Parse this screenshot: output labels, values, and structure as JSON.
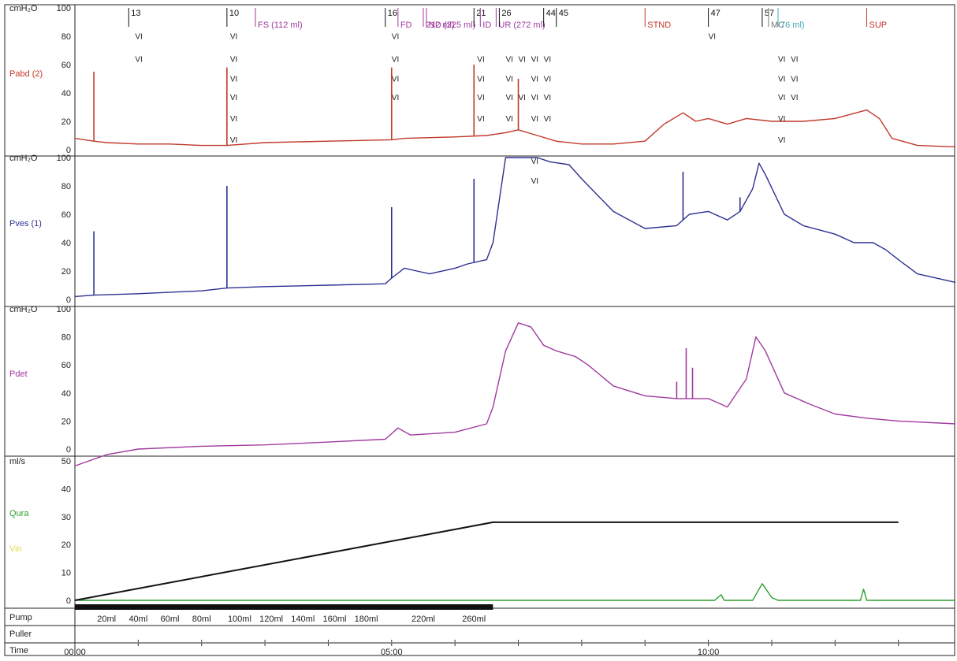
{
  "chart_data": {
    "type": "line",
    "time_axis": {
      "unit": "min",
      "range": [
        0,
        13.9
      ],
      "ticks": [
        {
          "t": 0,
          "label": "00:00"
        },
        {
          "t": 5,
          "label": "05:00"
        },
        {
          "t": 10,
          "label": "10:00"
        }
      ]
    },
    "panels": [
      {
        "id": "pabd",
        "unit": "cmH2O",
        "unit_label": "cmH₂O",
        "ylim": [
          0,
          100
        ],
        "yticks": [
          "0",
          "20",
          "40",
          "60",
          "80",
          "100"
        ],
        "legend": [
          "Pabd (2)"
        ],
        "series": [
          {
            "name": "Pabd (2)",
            "color": "#c0392b",
            "points": [
              [
                0,
                8
              ],
              [
                0.3,
                6
              ],
              [
                0.5,
                5
              ],
              [
                1,
                4
              ],
              [
                1.5,
                4
              ],
              [
                2,
                3
              ],
              [
                2.4,
                3
              ],
              [
                3,
                5
              ],
              [
                4,
                6
              ],
              [
                5,
                7
              ],
              [
                5.2,
                8
              ],
              [
                6,
                9
              ],
              [
                6.5,
                10
              ],
              [
                6.8,
                12
              ],
              [
                7,
                14
              ],
              [
                7.3,
                10
              ],
              [
                7.6,
                6
              ],
              [
                8,
                4
              ],
              [
                8.5,
                4
              ],
              [
                9,
                6
              ],
              [
                9.3,
                18
              ],
              [
                9.6,
                26
              ],
              [
                9.8,
                20
              ],
              [
                10,
                22
              ],
              [
                10.3,
                18
              ],
              [
                10.6,
                22
              ],
              [
                11,
                20
              ],
              [
                11.5,
                20
              ],
              [
                12,
                22
              ],
              [
                12.5,
                28
              ],
              [
                12.7,
                22
              ],
              [
                12.9,
                8
              ],
              [
                13.3,
                3
              ],
              [
                13.9,
                2
              ]
            ],
            "spikes": [
              [
                0.3,
                55
              ],
              [
                2.4,
                58
              ],
              [
                5.0,
                58
              ],
              [
                6.3,
                60
              ],
              [
                7.0,
                50
              ]
            ]
          }
        ]
      },
      {
        "id": "pves",
        "unit": "cmH2O",
        "unit_label": "cmH₂O",
        "ylim": [
          0,
          100
        ],
        "yticks": [
          "0",
          "20",
          "40",
          "60",
          "80",
          "100"
        ],
        "legend": [
          "Pves (1)"
        ],
        "series": [
          {
            "name": "Pves (1)",
            "color": "#2e3192",
            "points": [
              [
                0,
                2
              ],
              [
                0.3,
                3
              ],
              [
                1,
                4
              ],
              [
                2,
                6
              ],
              [
                2.4,
                8
              ],
              [
                3,
                9
              ],
              [
                4,
                10
              ],
              [
                4.9,
                11
              ],
              [
                5.0,
                15
              ],
              [
                5.2,
                22
              ],
              [
                5.4,
                20
              ],
              [
                5.6,
                18
              ],
              [
                6,
                22
              ],
              [
                6.2,
                25
              ],
              [
                6.5,
                28
              ],
              [
                6.6,
                40
              ],
              [
                6.7,
                70
              ],
              [
                6.8,
                100
              ],
              [
                7,
                100
              ],
              [
                7.3,
                100
              ],
              [
                7.5,
                97
              ],
              [
                7.8,
                95
              ],
              [
                8,
                85
              ],
              [
                8.5,
                62
              ],
              [
                9,
                50
              ],
              [
                9.5,
                52
              ],
              [
                9.7,
                60
              ],
              [
                10,
                62
              ],
              [
                10.3,
                56
              ],
              [
                10.5,
                62
              ],
              [
                10.7,
                78
              ],
              [
                10.8,
                96
              ],
              [
                10.9,
                88
              ],
              [
                11.2,
                60
              ],
              [
                11.5,
                52
              ],
              [
                12,
                46
              ],
              [
                12.3,
                40
              ],
              [
                12.6,
                40
              ],
              [
                12.8,
                35
              ],
              [
                13,
                28
              ],
              [
                13.3,
                18
              ],
              [
                13.9,
                12
              ]
            ],
            "spikes": [
              [
                0.3,
                48
              ],
              [
                2.4,
                80
              ],
              [
                5.0,
                65
              ],
              [
                6.3,
                85
              ],
              [
                9.6,
                90
              ],
              [
                10.5,
                72
              ]
            ]
          }
        ]
      },
      {
        "id": "pdet",
        "unit": "cmH2O",
        "unit_label": "cmH₂O",
        "ylim": [
          0,
          100
        ],
        "yticks": [
          "0",
          "20",
          "40",
          "60",
          "80",
          "100"
        ],
        "legend": [
          "Pdet"
        ],
        "series": [
          {
            "name": "Pdet",
            "color": "#a03a9f",
            "points": [
              [
                0,
                -12
              ],
              [
                0.5,
                -4
              ],
              [
                1,
                0
              ],
              [
                2,
                2
              ],
              [
                3,
                3
              ],
              [
                4,
                5
              ],
              [
                4.9,
                7
              ],
              [
                5.1,
                15
              ],
              [
                5.3,
                10
              ],
              [
                6,
                12
              ],
              [
                6.5,
                18
              ],
              [
                6.6,
                30
              ],
              [
                6.8,
                70
              ],
              [
                7,
                90
              ],
              [
                7.2,
                87
              ],
              [
                7.4,
                74
              ],
              [
                7.6,
                70
              ],
              [
                7.9,
                66
              ],
              [
                8.1,
                60
              ],
              [
                8.5,
                45
              ],
              [
                9,
                38
              ],
              [
                9.5,
                36
              ],
              [
                10,
                36
              ],
              [
                10.3,
                30
              ],
              [
                10.6,
                50
              ],
              [
                10.75,
                80
              ],
              [
                10.9,
                70
              ],
              [
                11.2,
                40
              ],
              [
                11.6,
                32
              ],
              [
                12,
                25
              ],
              [
                12.5,
                22
              ],
              [
                13,
                20
              ],
              [
                13.9,
                18
              ]
            ],
            "spikes": [
              [
                9.5,
                48
              ],
              [
                9.65,
                72
              ],
              [
                9.75,
                58
              ]
            ]
          }
        ]
      },
      {
        "id": "flow",
        "unit": "ml/s",
        "unit_label": "ml/s",
        "ylim": [
          0,
          50
        ],
        "yticks": [
          "0",
          "10",
          "20",
          "30",
          "40",
          "50"
        ],
        "legend": [
          "Qura",
          "Vin"
        ],
        "series": [
          {
            "name": "Qura",
            "color": "#2ca02c",
            "points": [
              [
                0,
                0
              ],
              [
                10.1,
                0
              ],
              [
                10.2,
                2
              ],
              [
                10.25,
                0
              ],
              [
                10.7,
                0
              ],
              [
                10.85,
                6
              ],
              [
                11,
                1
              ],
              [
                11.1,
                0
              ],
              [
                12.4,
                0
              ],
              [
                12.45,
                4
              ],
              [
                12.5,
                0
              ],
              [
                13.9,
                0
              ]
            ]
          },
          {
            "name": "Vin",
            "color": "#111111",
            "points": [
              [
                0,
                0
              ],
              [
                6.6,
                28
              ],
              [
                13,
                28
              ]
            ]
          }
        ]
      }
    ],
    "pump": {
      "label": "Pump",
      "on_range": [
        0,
        6.6
      ],
      "volume_labels": [
        {
          "t": 0.5,
          "label": "20ml"
        },
        {
          "t": 1.0,
          "label": "40ml"
        },
        {
          "t": 1.5,
          "label": "60ml"
        },
        {
          "t": 2.0,
          "label": "80ml"
        },
        {
          "t": 2.6,
          "label": "100ml"
        },
        {
          "t": 3.1,
          "label": "120ml"
        },
        {
          "t": 3.6,
          "label": "140ml"
        },
        {
          "t": 4.1,
          "label": "160ml"
        },
        {
          "t": 4.6,
          "label": "180ml"
        },
        {
          "t": 5.5,
          "label": "220ml"
        },
        {
          "t": 6.3,
          "label": "260ml"
        }
      ]
    },
    "puller": {
      "label": "Puller"
    },
    "time_row": {
      "label": "Time"
    },
    "events": [
      {
        "t": 0.85,
        "label": "13",
        "color": "#111111"
      },
      {
        "t": 2.4,
        "label": "10",
        "color": "#111111"
      },
      {
        "t": 2.85,
        "label": "FS (112 ml)",
        "color": "#a03a9f"
      },
      {
        "t": 4.9,
        "label": "16",
        "color": "#111111"
      },
      {
        "t": 5.1,
        "label": "FD",
        "color": "#a03a9f"
      },
      {
        "t": 5.5,
        "label": "212 ml)",
        "color": "#a03a9f"
      },
      {
        "t": 5.55,
        "label": "ND (225 ml)",
        "color": "#a03a9f"
      },
      {
        "t": 6.3,
        "label": "21",
        "color": "#111111"
      },
      {
        "t": 6.4,
        "label": "ID",
        "color": "#a03a9f"
      },
      {
        "t": 6.65,
        "label": "UR (272 ml)",
        "color": "#a03a9f"
      },
      {
        "t": 6.7,
        "label": "26",
        "color": "#111111"
      },
      {
        "t": 7.4,
        "label": "44",
        "color": "#111111"
      },
      {
        "t": 7.6,
        "label": "45",
        "color": "#111111"
      },
      {
        "t": 9.0,
        "label": "STND",
        "color": "#c0392b"
      },
      {
        "t": 10.0,
        "label": "47",
        "color": "#111111"
      },
      {
        "t": 10.85,
        "label": "57",
        "color": "#111111"
      },
      {
        "t": 10.95,
        "label": "MC",
        "color": "#777777"
      },
      {
        "t": 11.1,
        "label": "76 ml)",
        "color": "#45a7b5"
      },
      {
        "t": 12.5,
        "label": "SUP",
        "color": "#c0392b"
      }
    ],
    "vi_marks": {
      "text": "VI",
      "points": [
        [
          0.95,
          78
        ],
        [
          0.95,
          62
        ],
        [
          2.45,
          78
        ],
        [
          2.45,
          62
        ],
        [
          2.45,
          48
        ],
        [
          2.45,
          35
        ],
        [
          2.45,
          20
        ],
        [
          2.45,
          5
        ],
        [
          5.0,
          78
        ],
        [
          5.0,
          62
        ],
        [
          5.0,
          48
        ],
        [
          5.0,
          35
        ],
        [
          6.35,
          62
        ],
        [
          6.35,
          48
        ],
        [
          6.35,
          35
        ],
        [
          6.35,
          20
        ],
        [
          6.8,
          62
        ],
        [
          6.8,
          48
        ],
        [
          6.8,
          35
        ],
        [
          6.8,
          20
        ],
        [
          7.0,
          62
        ],
        [
          7.2,
          62
        ],
        [
          7.4,
          62
        ],
        [
          7.2,
          48
        ],
        [
          7.4,
          48
        ],
        [
          7.0,
          35
        ],
        [
          7.2,
          35
        ],
        [
          7.4,
          35
        ],
        [
          7.2,
          20
        ],
        [
          7.4,
          20
        ],
        [
          10.0,
          78
        ],
        [
          11.1,
          62
        ],
        [
          11.3,
          62
        ],
        [
          11.1,
          48
        ],
        [
          11.3,
          48
        ],
        [
          11.1,
          35
        ],
        [
          11.3,
          35
        ],
        [
          11.1,
          20
        ],
        [
          11.1,
          5
        ],
        [
          7.2,
          -10
        ],
        [
          7.2,
          -24
        ]
      ]
    }
  }
}
